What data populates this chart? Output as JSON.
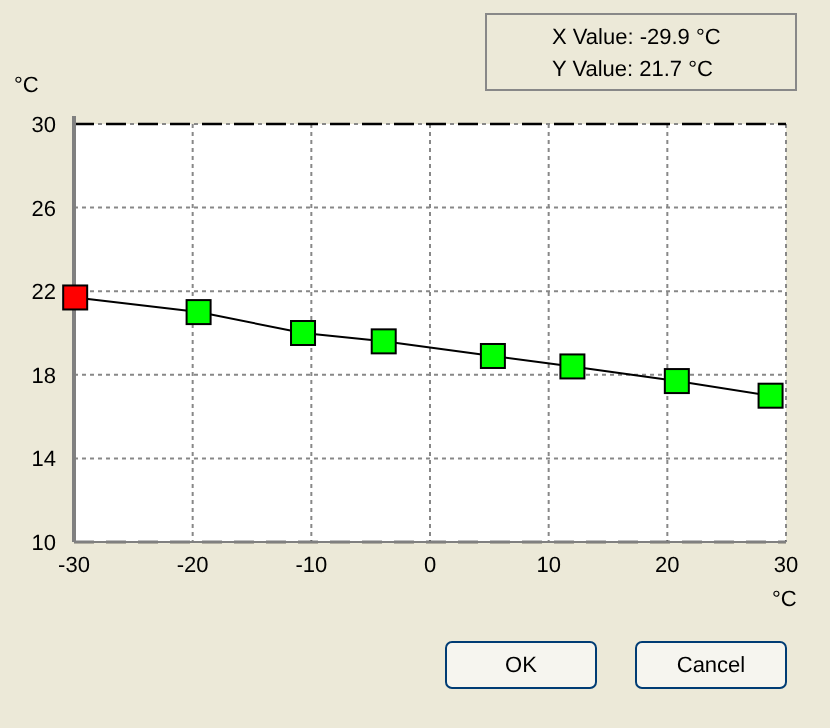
{
  "chart_data": {
    "type": "line",
    "xlabel": "°C",
    "ylabel": "°C",
    "x": [
      -29.9,
      -19.5,
      -10.7,
      -3.9,
      5.3,
      12.0,
      20.8,
      28.7
    ],
    "series": [
      {
        "color": "#000000",
        "colors": [
          "#ff0000",
          "#00ff00",
          "#00ff00",
          "#00ff00",
          "#00ff00",
          "#00ff00",
          "#00ff00",
          "#00ff00"
        ],
        "values": [
          21.7,
          21.0,
          20.0,
          19.6,
          18.9,
          18.4,
          17.7,
          17.0
        ]
      }
    ],
    "xlim": [
      -30,
      30
    ],
    "xticks": [
      -30,
      -20,
      -10,
      0,
      10,
      20,
      30
    ],
    "ylim": [
      10,
      30
    ],
    "yticks": [
      10,
      14,
      18,
      22,
      26,
      30
    ],
    "grid": true,
    "marker": "square",
    "line_style": "solid",
    "ref_lines": [
      {
        "axis": "y",
        "value": 30,
        "line_style": "dashed",
        "color": "#000000"
      },
      {
        "axis": "y",
        "value": 10,
        "line_style": "dashed",
        "color": "#000000"
      }
    ],
    "annotations": [
      "X Value: -29.9 °C",
      "Y Value: 21.7 °C",
      "OK",
      "Cancel"
    ]
  }
}
